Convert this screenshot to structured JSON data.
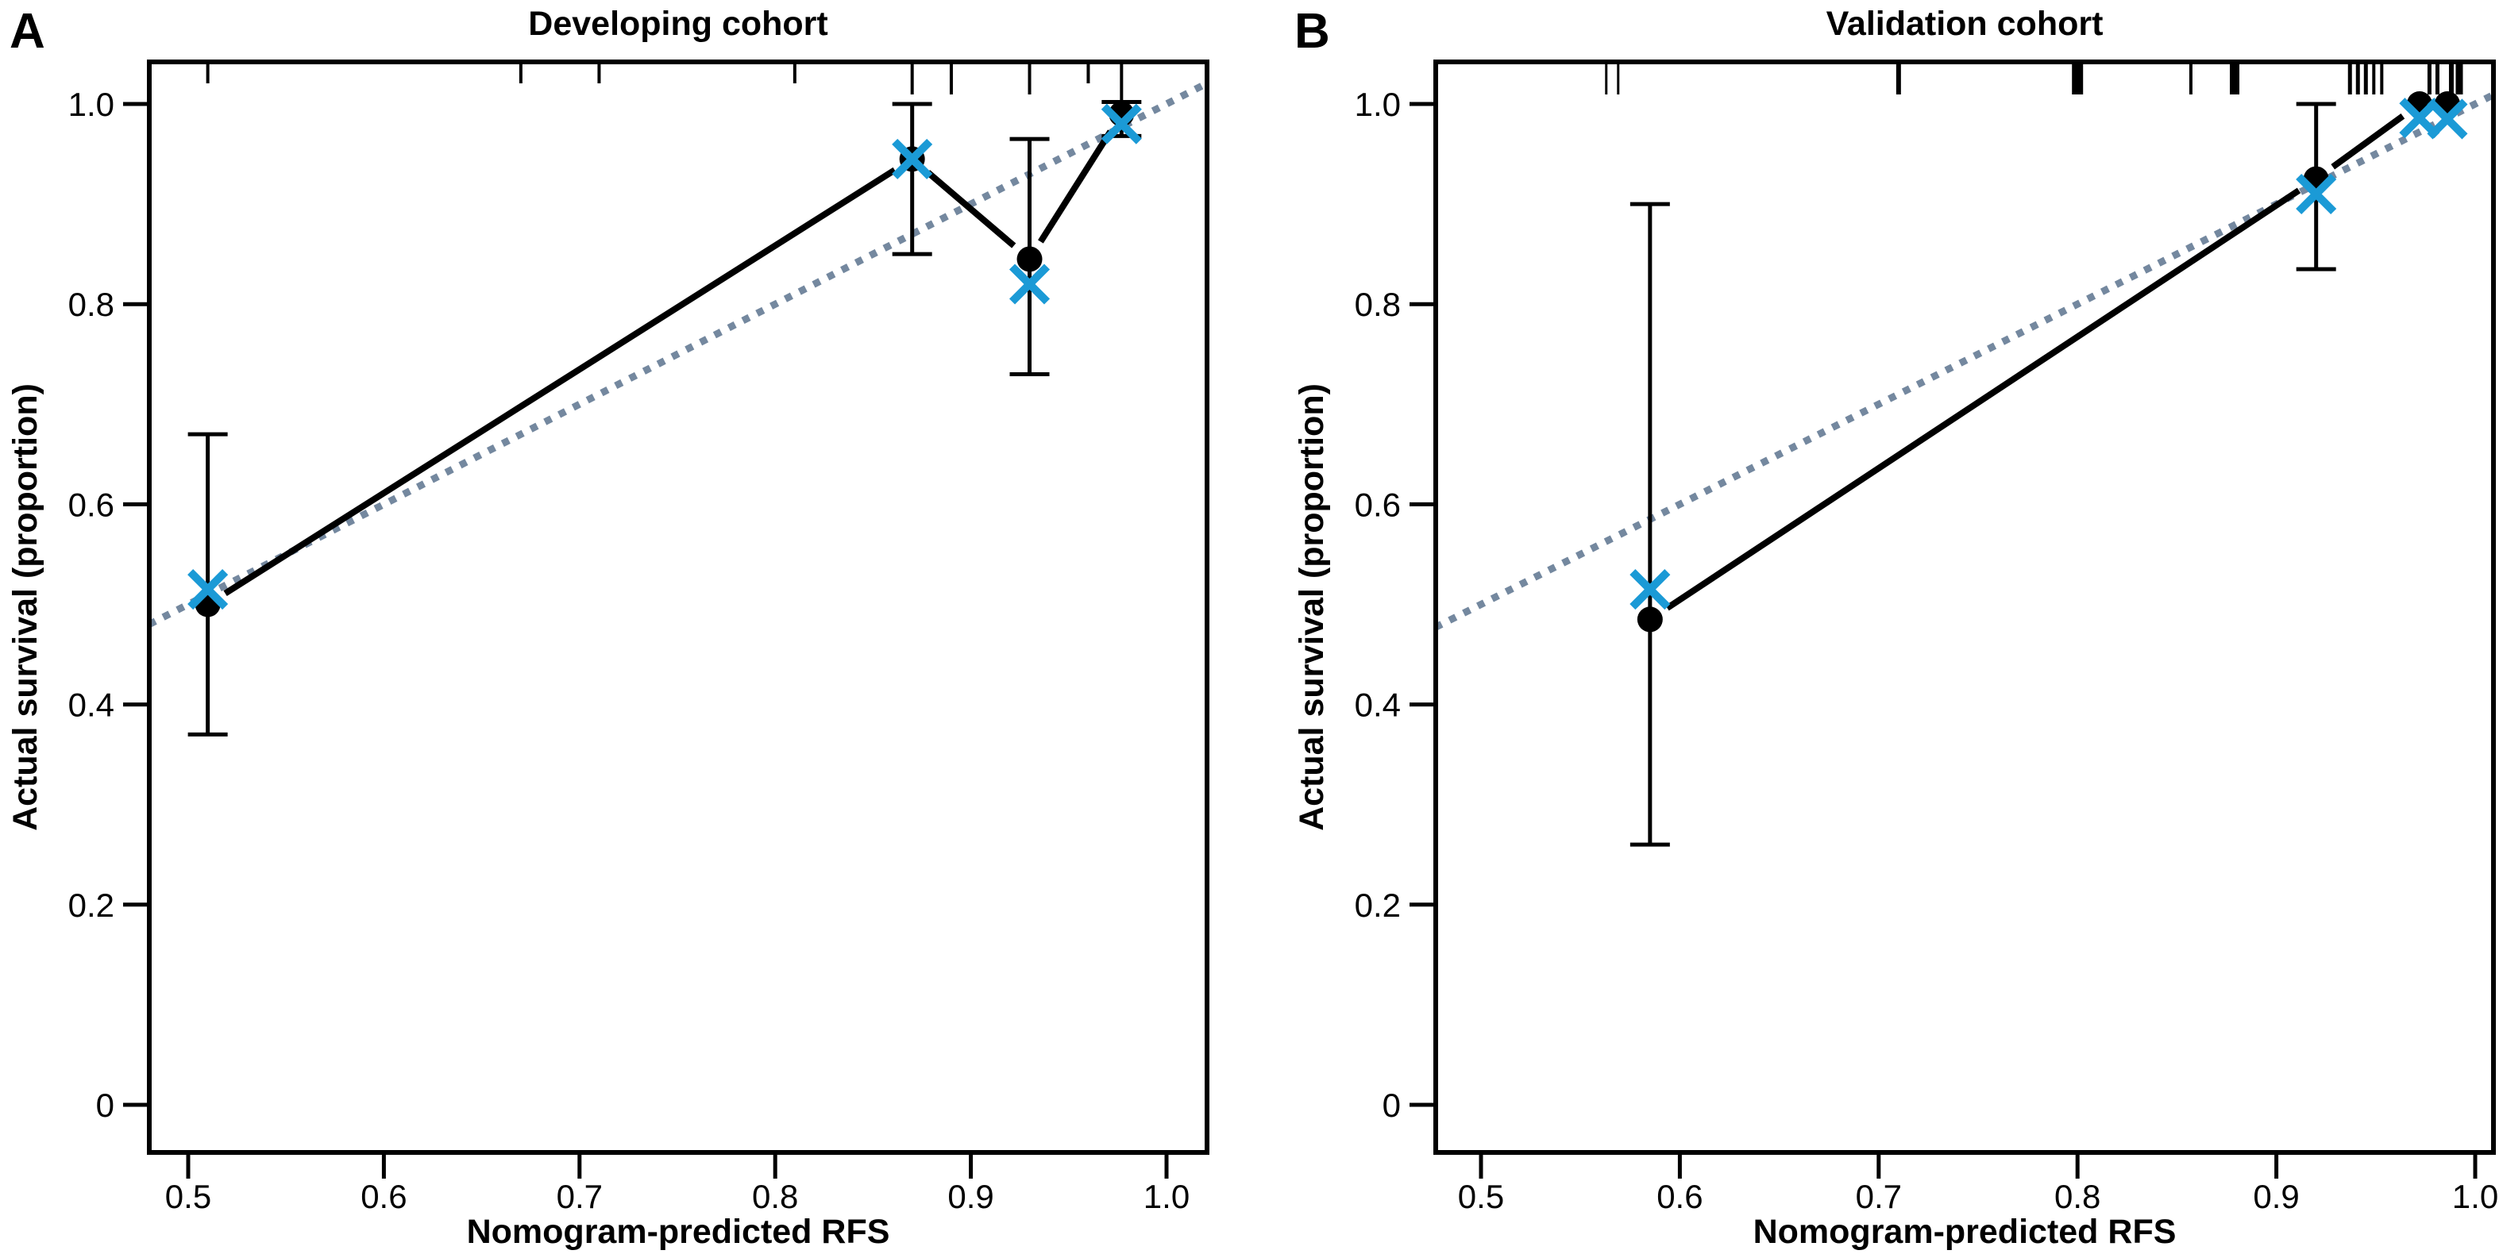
{
  "figure": {
    "background": "#ffffff",
    "colors": {
      "dot": "#000000",
      "cross": "#1b9ad6",
      "ideal_line": "#74889f",
      "solid_line": "#000000",
      "error_bar": "#000000",
      "axis": "#000000",
      "text": "#000000"
    }
  },
  "chart_data": {
    "type": "line",
    "description": "Nomogram calibration curves: black dots = actual survival estimate, blue crosses = bias-corrected estimate, vertical bars = confidence intervals, dotted gray-blue diagonal = ideal reference line y = x, short top ticks = rug of predicted values",
    "panels": [
      {
        "panel_label": "A",
        "title": "Developing cohort",
        "xlabel": "Nomogram-predicted RFS",
        "ylabel": "Actual survival (proportion)",
        "xlim": [
          0.48,
          1.021
        ],
        "ylim": [
          -0.048,
          1.042
        ],
        "x_tick_labels": [
          "0.5",
          "0.6",
          "0.7",
          "0.8",
          "0.9",
          "1.0"
        ],
        "x_tick_values": [
          0.5,
          0.6,
          0.7,
          0.8,
          0.9,
          1.0
        ],
        "y_tick_labels": [
          "1.0",
          "0.8",
          "0.6",
          "0.4",
          "0.2",
          "0"
        ],
        "y_tick_values": [
          1.0,
          0.8,
          0.6,
          0.4,
          0.2,
          0
        ],
        "grid": false,
        "legend": null,
        "points": [
          {
            "x": 0.51,
            "y_dot": 0.5,
            "y_cross": 0.515,
            "ci_low": 0.37,
            "ci_high": 0.67
          },
          {
            "x": 0.87,
            "y_dot": 0.945,
            "y_cross": 0.945,
            "ci_low": 0.85,
            "ci_high": 1.0
          },
          {
            "x": 0.93,
            "y_dot": 0.845,
            "y_cross": 0.82,
            "ci_low": 0.73,
            "ci_high": 0.965
          },
          {
            "x": 0.977,
            "y_dot": 0.99,
            "y_cross": 0.98,
            "ci_low": 0.968,
            "ci_high": 1.002
          }
        ],
        "ideal_line": {
          "from": 0.48,
          "to": 1.021,
          "rule": "y = x"
        },
        "rug_x": [
          {
            "x": 0.51,
            "len": 24,
            "w": 4
          },
          {
            "x": 0.67,
            "len": 24,
            "w": 4
          },
          {
            "x": 0.71,
            "len": 24,
            "w": 4
          },
          {
            "x": 0.81,
            "len": 24,
            "w": 4
          },
          {
            "x": 0.87,
            "len": 38,
            "w": 4
          },
          {
            "x": 0.89,
            "len": 38,
            "w": 4
          },
          {
            "x": 0.93,
            "len": 38,
            "w": 4
          },
          {
            "x": 0.96,
            "len": 24,
            "w": 4
          },
          {
            "x": 0.977,
            "len": 50,
            "w": 4
          }
        ]
      },
      {
        "panel_label": "B",
        "title": "Validation cohort",
        "xlabel": "Nomogram-predicted RFS",
        "ylabel": "Actual survival (proportion)",
        "xlim": [
          0.477,
          1.009
        ],
        "ylim": [
          -0.048,
          1.042
        ],
        "x_tick_labels": [
          "0.5",
          "0.6",
          "0.7",
          "0.8",
          "0.9",
          "1.0"
        ],
        "x_tick_values": [
          0.5,
          0.6,
          0.7,
          0.8,
          0.9,
          1.0
        ],
        "y_tick_labels": [
          "1.0",
          "0.8",
          "0.6",
          "0.4",
          "0.2",
          "0"
        ],
        "y_tick_values": [
          1.0,
          0.8,
          0.6,
          0.4,
          0.2,
          0
        ],
        "grid": false,
        "legend": null,
        "points": [
          {
            "x": 0.585,
            "y_dot": 0.485,
            "y_cross": 0.515,
            "ci_low": 0.26,
            "ci_high": 0.9
          },
          {
            "x": 0.92,
            "y_dot": 0.925,
            "y_cross": 0.91,
            "ci_low": 0.835,
            "ci_high": 1.0
          },
          {
            "x": 0.972,
            "y_dot": 1.0,
            "y_cross": 0.986,
            "ci_low": null,
            "ci_high": null
          },
          {
            "x": 0.986,
            "y_dot": 1.0,
            "y_cross": 0.985,
            "ci_low": null,
            "ci_high": null
          }
        ],
        "ideal_line": {
          "from": 0.477,
          "to": 1.009,
          "rule": "y = x"
        },
        "rug_x": [
          {
            "x": 0.563,
            "len": 38,
            "w": 3
          },
          {
            "x": 0.569,
            "len": 38,
            "w": 3
          },
          {
            "x": 0.71,
            "len": 38,
            "w": 6
          },
          {
            "x": 0.8,
            "len": 38,
            "w": 14
          },
          {
            "x": 0.857,
            "len": 38,
            "w": 4
          },
          {
            "x": 0.879,
            "len": 38,
            "w": 12
          },
          {
            "x": 0.937,
            "len": 38,
            "w": 5
          },
          {
            "x": 0.941,
            "len": 38,
            "w": 5
          },
          {
            "x": 0.945,
            "len": 38,
            "w": 5
          },
          {
            "x": 0.949,
            "len": 38,
            "w": 4
          },
          {
            "x": 0.953,
            "len": 38,
            "w": 4
          },
          {
            "x": 0.977,
            "len": 38,
            "w": 5
          },
          {
            "x": 0.981,
            "len": 38,
            "w": 5
          },
          {
            "x": 0.988,
            "len": 38,
            "w": 6
          },
          {
            "x": 0.992,
            "len": 38,
            "w": 9
          }
        ]
      }
    ]
  }
}
